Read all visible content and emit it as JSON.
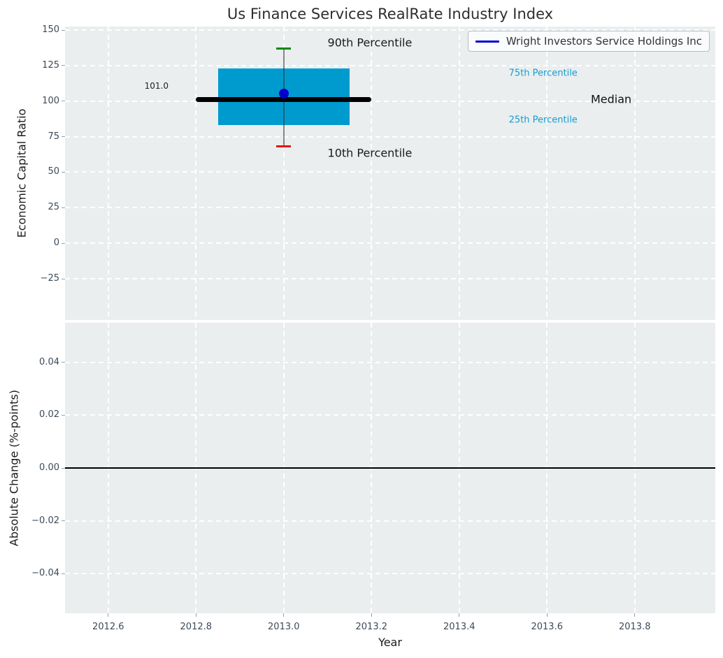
{
  "title": "Us Finance Services RealRate Industry Index",
  "legend": {
    "label": "Wright Investors Service Holdings Inc",
    "line_color": "#0000cd"
  },
  "colors": {
    "panel_bg": "#eaeeef",
    "grid": "#ffffff",
    "tick_text": "#3c4a59",
    "box_fill": "#009bce",
    "median_line": "#000000",
    "whisker": "#555555",
    "cap_90th": "#0a8a0a",
    "cap_10th": "#ee1111",
    "company_marker": "#0000cd",
    "percentile_text": "#1a9bd0",
    "zero_line": "#000000"
  },
  "chart_data": [
    {
      "type": "boxplot",
      "title": "Us Finance Services RealRate Industry Index",
      "xlabel": "Year",
      "ylabel": "Economic Capital Ratio",
      "xlim": [
        2012.5015,
        2013.9837
      ],
      "ylim": [
        -54,
        152.5
      ],
      "grid": "white-dashed",
      "legend_position": "upper right",
      "legend_entries": [
        "Wright Investors Service Holdings Inc"
      ],
      "xticks": [
        {
          "v": 2012.6,
          "label": "2012.6"
        },
        {
          "v": 2012.8,
          "label": "2012.8"
        },
        {
          "v": 2013.0,
          "label": "2013.0"
        },
        {
          "v": 2013.2,
          "label": "2013.2"
        },
        {
          "v": 2013.4,
          "label": "2013.4"
        },
        {
          "v": 2013.6,
          "label": "2013.6"
        },
        {
          "v": 2013.8,
          "label": "2013.8"
        }
      ],
      "yticks": [
        {
          "v": 150,
          "label": "150"
        },
        {
          "v": 125,
          "label": "125"
        },
        {
          "v": 100,
          "label": "100"
        },
        {
          "v": 75,
          "label": "75"
        },
        {
          "v": 50,
          "label": "50"
        },
        {
          "v": 25,
          "label": "25"
        },
        {
          "v": 0,
          "label": "0"
        },
        {
          "v": -25,
          "label": "−25"
        }
      ],
      "box": {
        "x_center": 2013.0,
        "box_x_start": 2012.85,
        "box_x_end": 2013.15,
        "median_x_start": 2012.8,
        "median_x_end": 2013.2,
        "p90": 136.8,
        "p75": 122.8,
        "median": 101.0,
        "p25": 83.2,
        "p10": 68.4,
        "median_value_label": "101.0",
        "company_point": {
          "x": 2013.0,
          "y": 105.2
        }
      },
      "annotations": [
        {
          "text": "90th Percentile",
          "x": 2013.1,
          "y": 141.0,
          "anchor": "left",
          "color": "#1a1a1a",
          "size": 16
        },
        {
          "text": "10th Percentile",
          "x": 2013.1,
          "y": 63.5,
          "anchor": "left",
          "color": "#1a1a1a",
          "size": 16
        },
        {
          "text": "75th Percentile",
          "x": 2013.513,
          "y": 119.5,
          "anchor": "left",
          "color": "#1a9bd0",
          "size": 13
        },
        {
          "text": "25th Percentile",
          "x": 2013.513,
          "y": 86.5,
          "anchor": "left",
          "color": "#1a9bd0",
          "size": 13
        },
        {
          "text": "Median",
          "x": 2013.7,
          "y": 101.2,
          "anchor": "left",
          "color": "#111111",
          "size": 16
        },
        {
          "text": "101.0",
          "x": 2012.71,
          "y": 110.5,
          "anchor": "center",
          "color": "#222222",
          "size": 12
        }
      ]
    },
    {
      "type": "line",
      "xlabel": "Year",
      "ylabel": "Absolute Change (%-points)",
      "xlim": [
        2012.5015,
        2013.9837
      ],
      "ylim": [
        -0.055,
        0.055
      ],
      "grid": "white-dashed",
      "yticks": [
        {
          "v": 0.04,
          "label": "0.04"
        },
        {
          "v": 0.02,
          "label": "0.02"
        },
        {
          "v": 0,
          "label": "0.00"
        },
        {
          "v": -0.02,
          "label": "−0.02"
        },
        {
          "v": -0.04,
          "label": "−0.04"
        }
      ],
      "zero_line": 0,
      "series": [
        {
          "name": "Wright Investors Service Holdings Inc",
          "x": [],
          "y": []
        }
      ]
    }
  ]
}
